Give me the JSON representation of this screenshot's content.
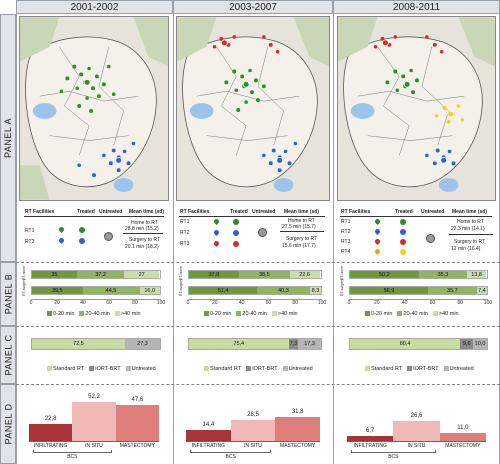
{
  "headers": [
    "2001-2002",
    "2003-2007",
    "2008-2011"
  ],
  "panels": [
    "PANEL A",
    "PANEL B",
    "PANEL C",
    "PANEL D"
  ],
  "colors": {
    "b_dark": "#6e9a3c",
    "b_mid": "#8eb560",
    "b_light": "#c9dea8",
    "c_std": "#c7dca0",
    "c_iort": "#8a8a8a",
    "c_untr": "#b6b6b6",
    "d_inf": "#a8343a",
    "d_situ": "#f0b9b7",
    "d_mast": "#de7f7c",
    "green": "#2e8b2e",
    "blue": "#2f5fd6",
    "red": "#d62b2b",
    "yellow": "#f0d020"
  },
  "legend": {
    "rt_facilities": "RT Facilities",
    "treated": "Treated",
    "untreated": "Untreated",
    "mean_time": "Mean time (sd)",
    "home_to_rt": "Home to RT",
    "surgery_to_rt": "Surgery to RT",
    "col1": {
      "rt": [
        "RT1",
        "RT2"
      ],
      "home": "28.8 min (15.2)",
      "surgery": "20.1 min (18.2)"
    },
    "col2": {
      "rt": [
        "RT1",
        "RT2",
        "RT3"
      ],
      "home": "27.5 min (15.7)",
      "surgery": "15.6 min (17.7)"
    },
    "col3": {
      "rt": [
        "RT1",
        "RT2",
        "RT3",
        "RT4"
      ],
      "home": "22.3 min (14.1)",
      "surgery": "12 min (16.4)"
    }
  },
  "panel_b": {
    "row_labels": [
      "RT-home",
      "RT-surgery"
    ],
    "legend": [
      "0-20 min",
      "20-40 min",
      ">40 min"
    ],
    "ticks": [
      "0",
      "20",
      "40",
      "60",
      "80",
      "100"
    ],
    "cols": [
      {
        "home": [
          "35",
          "37,2",
          "27"
        ],
        "surgery": [
          "39,5",
          "44,5",
          "16,0"
        ],
        "home_v": [
          35,
          37.2,
          27
        ],
        "surgery_v": [
          39.5,
          44.5,
          16.0
        ]
      },
      {
        "home": [
          "37,8",
          "38,5",
          "22,6"
        ],
        "surgery": [
          "51,4",
          "40,3",
          "8,3"
        ],
        "home_v": [
          37.8,
          38.5,
          22.6
        ],
        "surgery_v": [
          51.4,
          40.3,
          8.3
        ]
      },
      {
        "home": [
          "50,2",
          "35,3",
          "13,8"
        ],
        "surgery": [
          "56,9",
          "35,7",
          "7,4"
        ],
        "home_v": [
          50.2,
          35.3,
          13.8
        ],
        "surgery_v": [
          56.9,
          35.7,
          7.4
        ]
      }
    ]
  },
  "panel_c": {
    "legend": [
      "Standard RT",
      "IORT-BRT",
      "Untreated"
    ],
    "cols": [
      {
        "labels": [
          "72,5",
          "0,2",
          "27,3"
        ],
        "values": [
          72.5,
          0.2,
          27.3
        ]
      },
      {
        "labels": [
          "75,4",
          "7,3",
          "17,3"
        ],
        "values": [
          75.4,
          7.3,
          17.3
        ]
      },
      {
        "labels": [
          "80,4",
          "9,6",
          "10,0"
        ],
        "values": [
          80.4,
          9.6,
          10.0
        ]
      }
    ]
  },
  "panel_d": {
    "categories": [
      "INFILTRATING",
      "IN SITU",
      "MASTECTOMY"
    ],
    "group_label": "BCS",
    "cols": [
      {
        "labels": [
          "22,8",
          "52,2",
          "47,6"
        ],
        "values": [
          22.8,
          52.2,
          47.6
        ]
      },
      {
        "labels": [
          "14,4",
          "28,5",
          "31,8"
        ],
        "values": [
          14.4,
          28.5,
          31.8
        ]
      },
      {
        "labels": [
          "6,7",
          "26,6",
          "11,0"
        ],
        "values": [
          6.7,
          26.6,
          11.0
        ]
      }
    ]
  }
}
